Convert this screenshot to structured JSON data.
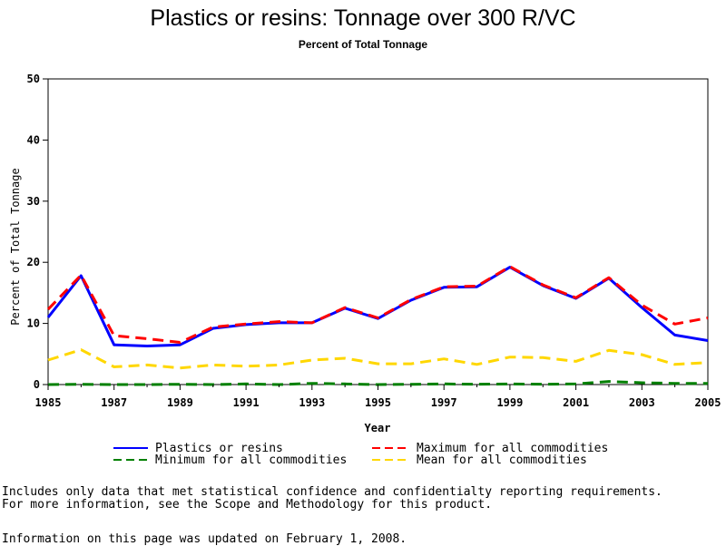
{
  "chart_data": {
    "type": "line",
    "title": "Plastics or resins: Tonnage over 300 R/VC",
    "subtitle": "Percent of Total Tonnage",
    "xlabel": "Year",
    "ylabel": "Percent of Total Tonnage",
    "xlim": [
      1985,
      2005
    ],
    "ylim": [
      0,
      50
    ],
    "x_ticks": [
      "1985",
      "1987",
      "1989",
      "1991",
      "1993",
      "1995",
      "1997",
      "1999",
      "2001",
      "2003",
      "2005"
    ],
    "y_ticks": [
      "0",
      "10",
      "20",
      "30",
      "40",
      "50"
    ],
    "x": [
      1985,
      1986,
      1987,
      1988,
      1989,
      1990,
      1991,
      1992,
      1993,
      1994,
      1995,
      1996,
      1997,
      1998,
      1999,
      2000,
      2001,
      2002,
      2003,
      2004,
      2005
    ],
    "series": [
      {
        "name": "Plastics or resins",
        "color": "#0000ff",
        "dash": "solid",
        "values": [
          11.0,
          17.8,
          6.5,
          6.3,
          6.5,
          9.2,
          9.8,
          10.1,
          10.1,
          12.5,
          10.8,
          13.8,
          15.9,
          16.0,
          19.2,
          16.2,
          14.1,
          17.4,
          12.6,
          8.1,
          7.2
        ]
      },
      {
        "name": "Maximum for all commodities",
        "color": "#ff0000",
        "dash": "dashed",
        "values": [
          12.3,
          17.9,
          8.0,
          7.5,
          6.9,
          9.4,
          9.9,
          10.3,
          10.1,
          12.6,
          10.9,
          13.9,
          16.0,
          16.1,
          19.3,
          16.3,
          14.2,
          17.5,
          13.0,
          9.9,
          10.9
        ]
      },
      {
        "name": "Minimum for all commodities",
        "color": "#008000",
        "dash": "dashed",
        "values": [
          0.0,
          0.05,
          0.0,
          0.0,
          0.05,
          0.0,
          0.1,
          0.0,
          0.2,
          0.1,
          0.0,
          0.05,
          0.1,
          0.05,
          0.1,
          0.05,
          0.1,
          0.5,
          0.3,
          0.2,
          0.2
        ]
      },
      {
        "name": "Mean for all commodities",
        "color": "#ffd700",
        "dash": "dashed",
        "values": [
          4.0,
          5.7,
          2.9,
          3.2,
          2.7,
          3.2,
          3.0,
          3.2,
          4.0,
          4.3,
          3.4,
          3.4,
          4.2,
          3.3,
          4.5,
          4.4,
          3.8,
          5.6,
          4.9,
          3.3,
          3.6
        ]
      }
    ],
    "legend_position": "bottom",
    "grid": false
  },
  "footnotes": {
    "line1": "Includes only data that met statistical confidence and confidentialty reporting requirements.",
    "line2": "For more information, see the Scope and Methodology for this product.",
    "line3": "Information on this page was updated on February 1, 2008."
  }
}
